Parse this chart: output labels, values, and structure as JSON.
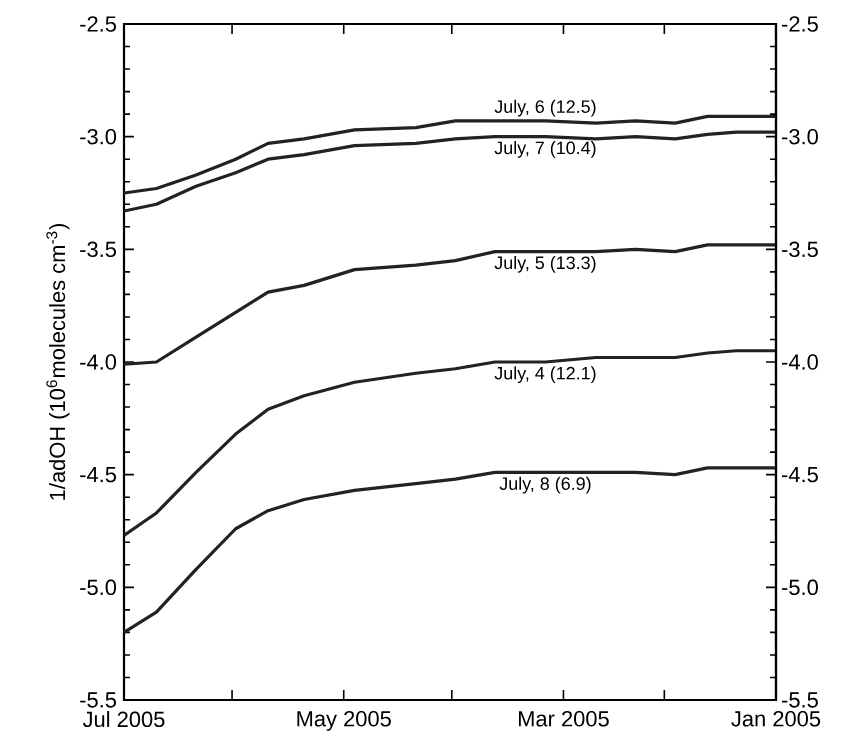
{
  "chart_data": {
    "type": "line",
    "ylabel": "1/adOH (10$^{6}$molecules cm$^{-3}$)",
    "x": [
      "2005-07-01",
      "2005-06-22",
      "2005-06-11",
      "2005-05-31",
      "2005-05-22",
      "2005-05-12",
      "2005-04-28",
      "2005-04-11",
      "2005-03-31",
      "2005-03-20",
      "2005-03-06",
      "2005-02-20",
      "2005-02-09",
      "2005-01-29",
      "2005-01-20",
      "2005-01-12",
      "2005-01-01"
    ],
    "xlim": [
      "2005-07",
      "2005-01"
    ],
    "xticks": [
      {
        "value": "2005-07",
        "label": "Jul 2005"
      },
      {
        "value": "2005-06",
        "label": null
      },
      {
        "value": "2005-05",
        "label": "May 2005"
      },
      {
        "value": "2005-04",
        "label": null
      },
      {
        "value": "2005-03",
        "label": "Mar 2005"
      },
      {
        "value": "2005-02",
        "label": null
      },
      {
        "value": "2005-01",
        "label": "Jan 2005"
      }
    ],
    "ylim": [
      -5.5,
      -2.5
    ],
    "yticks": [
      -5.5,
      {
        "value": -5,
        "label": "-5.0"
      },
      -4.5,
      {
        "value": -4,
        "label": "-4.0"
      },
      -3.5,
      {
        "value": -3,
        "label": "-3.0"
      },
      -2.5
    ],
    "y2lim": [
      -5.5,
      -2.5
    ],
    "y2ticks": [
      -5.5,
      {
        "value": -5,
        "label": "-5.0"
      },
      -4.5,
      {
        "value": -4,
        "label": "-4.0"
      },
      -3.5,
      {
        "value": -3,
        "label": "-3.0"
      },
      -2.5
    ],
    "series": [
      {
        "name": "July, 6 (12.5)",
        "color": "#222222",
        "values": [
          -3.25,
          -3.23,
          -3.17,
          -3.1,
          -3.03,
          -3.01,
          -2.97,
          -2.96,
          -2.93,
          -2.93,
          -2.93,
          -2.94,
          -2.93,
          -2.94,
          -2.91,
          -2.91,
          -2.91
        ]
      },
      {
        "name": "July, 7 (10.4)",
        "color": "#222222",
        "values": [
          -3.33,
          -3.3,
          -3.22,
          -3.16,
          -3.1,
          -3.08,
          -3.04,
          -3.03,
          -3.01,
          -3.0,
          -3.0,
          -3.01,
          -3.0,
          -3.01,
          -2.99,
          -2.98,
          -2.98
        ]
      },
      {
        "name": "July, 5 (13.3)",
        "color": "#222222",
        "values": [
          -4.01,
          -4.0,
          -3.89,
          -3.78,
          -3.69,
          -3.66,
          -3.59,
          -3.57,
          -3.55,
          -3.51,
          -3.51,
          -3.51,
          -3.5,
          -3.51,
          -3.48,
          -3.48,
          -3.48
        ]
      },
      {
        "name": "July, 4 (12.1)",
        "color": "#222222",
        "values": [
          -4.77,
          -4.67,
          -4.49,
          -4.32,
          -4.21,
          -4.15,
          -4.09,
          -4.05,
          -4.03,
          -4.0,
          -4.0,
          -3.98,
          -3.98,
          -3.98,
          -3.96,
          -3.95,
          -3.95
        ]
      },
      {
        "name": "July, 8 (6.9)",
        "color": "#222222",
        "values": [
          -5.2,
          -5.11,
          -4.92,
          -4.74,
          -4.66,
          -4.61,
          -4.57,
          -4.54,
          -4.52,
          -4.49,
          -4.49,
          -4.49,
          -4.49,
          -4.5,
          -4.47,
          -4.47,
          -4.47
        ]
      }
    ]
  }
}
